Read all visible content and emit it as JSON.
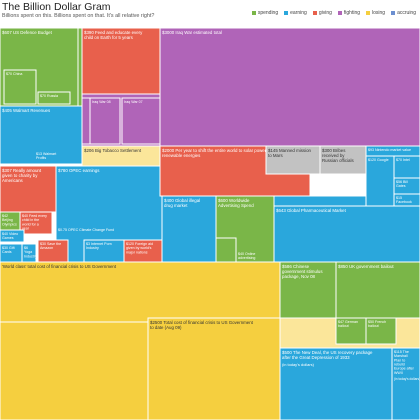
{
  "header": {
    "title": "The Billion Dollar Gram",
    "subtitle": "Billions spent on this. Billions spent on that. It's all relative right?"
  },
  "legend": [
    {
      "label": "spending",
      "color": "#7ab648"
    },
    {
      "label": "earning",
      "color": "#2aa7dc"
    },
    {
      "label": "giving",
      "color": "#e8604c"
    },
    {
      "label": "fighting",
      "color": "#b064b8"
    },
    {
      "label": "losing",
      "color": "#f5cf3f"
    },
    {
      "label": "accruing",
      "color": "#6c8fd0"
    }
  ],
  "colors": {
    "spending": "#7ab648",
    "earning": "#2aa7dc",
    "giving": "#e8604c",
    "fighting": "#b064b8",
    "losing": "#f5cf3f",
    "accruing": "#6c8fd0",
    "grey": "#c2c2c2",
    "lightyellow": "#fbe69a",
    "darkyellow": "#d9b228"
  },
  "chart_data": {
    "type": "treemap",
    "title": "The Billion Dollar Gram",
    "items": [
      {
        "label": "US Defence Budget",
        "amount": "$607",
        "category": "spending"
      },
      {
        "label": "China",
        "amount": "$70",
        "category": "spending"
      },
      {
        "label": "Russia",
        "amount": "$70",
        "category": "spending"
      },
      {
        "label": "Feed and educate every child on Earth for 5 years",
        "amount": "$390",
        "category": "giving"
      },
      {
        "label": "Iraq War estimated total",
        "amount": "$3000",
        "category": "fighting"
      },
      {
        "label": "Walmart Revenues",
        "amount": "$405",
        "category": "earning"
      },
      {
        "label": "Walmart Profits",
        "amount": "$13",
        "category": "earning"
      },
      {
        "label": "Iraq War 08",
        "amount": "",
        "category": "fighting"
      },
      {
        "label": "Iraq War 07",
        "amount": "",
        "category": "fighting"
      },
      {
        "label": "Iraq War 06",
        "amount": "",
        "category": "fighting"
      },
      {
        "label": "Big Tobacco Settlement",
        "amount": "$206",
        "category": "losing"
      },
      {
        "label": "Really amount given to charity by Americans",
        "amount": "$307",
        "category": "giving"
      },
      {
        "label": "OPEC earnings",
        "amount": "$780",
        "category": "earning"
      },
      {
        "label": "Beijing Olympics",
        "amount": "$42",
        "category": "spending"
      },
      {
        "label": "Feed every child in the world for a year",
        "amount": "$40",
        "category": "giving"
      },
      {
        "label": "Video Games Market",
        "amount": "$40",
        "category": "earning"
      },
      {
        "label": "Gift Cards",
        "amount": "$30",
        "category": "spending"
      },
      {
        "label": "Save the Amazon",
        "amount": "$30",
        "category": "giving"
      },
      {
        "label": "Yoga Industry",
        "amount": "$6",
        "category": "spending"
      },
      {
        "label": "OPEC Climate Change Fund",
        "amount": "$0.75",
        "category": "giving"
      },
      {
        "label": "Internet Porn Industry",
        "amount": "$3",
        "category": "earning"
      },
      {
        "label": "Foreign aid given by world's major nations",
        "amount": "$120",
        "category": "giving"
      },
      {
        "label": "Per year to shift the entire world to solar power and renewable energies",
        "amount": "$2000",
        "category": "giving"
      },
      {
        "label": "Manned mission to Mars",
        "amount": "$145",
        "category": "spending"
      },
      {
        "label": "Bribes received by Russian officials",
        "amount": "$300",
        "category": "losing"
      },
      {
        "label": "Nintendo market value",
        "amount": "$93",
        "category": "earning"
      },
      {
        "label": "Google",
        "amount": "$120",
        "category": "earning"
      },
      {
        "label": "Intel",
        "amount": "$70",
        "category": "earning"
      },
      {
        "label": "Bill Gates",
        "amount": "$56",
        "category": "earning"
      },
      {
        "label": "Facebook",
        "amount": "$15",
        "category": "earning"
      },
      {
        "label": "Global illegal drug market",
        "amount": "$400",
        "category": "earning"
      },
      {
        "label": "Worldwide Advertising Spend",
        "amount": "$600",
        "category": "spending"
      },
      {
        "label": "Global Pharmaceutical Market",
        "amount": "$643",
        "category": "earning"
      },
      {
        "label": "Global arms trade",
        "amount": "$50",
        "category": "spending"
      },
      {
        "label": "Online advertising",
        "amount": "$40",
        "category": "spending"
      },
      {
        "label": "'World class' total cost of financial crisis to US Government",
        "amount": "",
        "category": "losing"
      },
      {
        "label": "Total cost of financial crisis to US Government to date (Aug 09)",
        "amount": "$2500",
        "category": "losing"
      },
      {
        "label": "Chinese government stimulus package, Nov 08",
        "amount": "$586",
        "category": "spending"
      },
      {
        "label": "UK government bailout",
        "amount": "$850",
        "category": "spending"
      },
      {
        "label": "German bailout",
        "amount": "$47",
        "category": "spending"
      },
      {
        "label": "French bailout",
        "amount": "$50",
        "category": "spending"
      },
      {
        "label": "The New Deal, the US recovery package after the Great Depression of 1933",
        "amount": "$500",
        "category": "spending",
        "note": "(in today's dollars)"
      },
      {
        "label": "The Marshall Plan to rebuild Europe after WWII",
        "amount": "$115",
        "category": "spending",
        "note": "(in today's dollars)"
      }
    ]
  }
}
